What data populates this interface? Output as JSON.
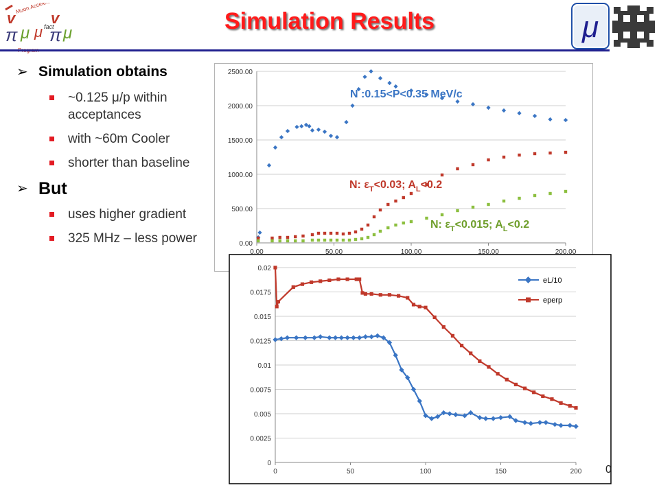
{
  "slide": {
    "title": "Simulation Results",
    "page_number": "0",
    "logo_left": {
      "text": [
        "Muon Accelerator",
        "Program",
        "fact"
      ]
    },
    "logo_right": {
      "symbol": "μ"
    },
    "accent_color": "#e31b23",
    "title_color": "#ff1a1a"
  },
  "bullets": {
    "b1": "Simulation obtains",
    "b1_items": [
      "~0.125 μ/p within acceptances",
      "with ~60m Cooler",
      "shorter than baseline"
    ],
    "b2": "But",
    "b2_items": [
      "uses higher gradient",
      "325 MHz – less power"
    ]
  },
  "chart_data": [
    {
      "type": "scatter",
      "x_ticks": [
        "0.00",
        "50.00",
        "100.00",
        "150.00",
        "200.00"
      ],
      "y_ticks": [
        "0.00",
        "500.00",
        "1000.00",
        "1500.00",
        "2000.00",
        "2500.00"
      ],
      "xlim": [
        0,
        200
      ],
      "ylim": [
        0,
        2500
      ],
      "grid": "horizontal",
      "series": [
        {
          "name": "N :0.15<P<0.35 MeV/c",
          "color": "#3a75c4",
          "x": [
            1,
            2,
            8,
            12,
            16,
            20,
            26,
            29,
            32,
            34,
            36,
            40,
            44,
            48,
            52,
            58,
            62,
            66,
            70,
            74,
            80,
            86,
            90,
            100,
            110,
            120,
            130,
            140,
            150,
            160,
            170,
            180,
            190,
            200
          ],
          "y": [
            80,
            150,
            1130,
            1390,
            1540,
            1630,
            1690,
            1700,
            1720,
            1700,
            1640,
            1650,
            1620,
            1560,
            1540,
            1760,
            2000,
            2240,
            2420,
            2500,
            2400,
            2330,
            2280,
            2220,
            2160,
            2110,
            2060,
            2020,
            1970,
            1930,
            1890,
            1850,
            1800,
            1790
          ]
        },
        {
          "name": "N: εT<0.03; AL<0.2",
          "label_parts": [
            "N: ε",
            "T",
            "<0.03; A",
            "L",
            "<0.2"
          ],
          "color": "#c0392b",
          "x": [
            1,
            10,
            15,
            20,
            25,
            30,
            36,
            40,
            44,
            48,
            52,
            56,
            60,
            64,
            68,
            72,
            76,
            80,
            85,
            90,
            95,
            100,
            110,
            120,
            130,
            140,
            150,
            160,
            170,
            180,
            190,
            200
          ],
          "y": [
            70,
            70,
            80,
            80,
            90,
            100,
            120,
            140,
            140,
            140,
            140,
            130,
            140,
            160,
            200,
            260,
            380,
            480,
            560,
            610,
            660,
            720,
            850,
            990,
            1080,
            1140,
            1210,
            1250,
            1280,
            1300,
            1310,
            1320
          ]
        },
        {
          "name": "N: εT<0.015; AL<0.2",
          "label_parts": [
            "N: ε",
            "T",
            "<0.015; A",
            "L",
            "<0.2"
          ],
          "color": "#8cbf3f",
          "x": [
            1,
            10,
            15,
            20,
            25,
            30,
            36,
            40,
            44,
            48,
            52,
            56,
            60,
            64,
            68,
            72,
            76,
            80,
            85,
            90,
            95,
            100,
            110,
            120,
            130,
            140,
            150,
            160,
            170,
            180,
            190,
            200
          ],
          "y": [
            30,
            30,
            30,
            30,
            30,
            30,
            40,
            40,
            40,
            40,
            40,
            40,
            40,
            50,
            60,
            80,
            120,
            170,
            220,
            260,
            290,
            310,
            360,
            410,
            470,
            520,
            560,
            610,
            650,
            690,
            720,
            750
          ]
        }
      ]
    },
    {
      "type": "line",
      "x_ticks": [
        "0",
        "50",
        "100",
        "150",
        "200"
      ],
      "y_ticks": [
        "0",
        "0.0025",
        "0.005",
        "0.0075",
        "0.01",
        "0.0125",
        "0.015",
        "0.0175",
        "0.02"
      ],
      "xlim": [
        0,
        200
      ],
      "ylim": [
        0,
        0.02
      ],
      "grid": "horizontal",
      "legend": "top-right",
      "series": [
        {
          "name": "eL/10",
          "color": "#3a75c4",
          "x": [
            0,
            4,
            8,
            14,
            20,
            26,
            30,
            36,
            40,
            44,
            48,
            52,
            56,
            60,
            64,
            68,
            72,
            76,
            80,
            84,
            88,
            92,
            96,
            100,
            104,
            108,
            112,
            116,
            120,
            126,
            130,
            136,
            140,
            145,
            150,
            156,
            160,
            166,
            170,
            176,
            180,
            186,
            190,
            196,
            200
          ],
          "y": [
            0.0126,
            0.0127,
            0.0128,
            0.0128,
            0.0128,
            0.0128,
            0.0129,
            0.0128,
            0.0128,
            0.0128,
            0.0128,
            0.0128,
            0.0128,
            0.0129,
            0.0129,
            0.013,
            0.0128,
            0.0123,
            0.011,
            0.0095,
            0.0087,
            0.0075,
            0.0063,
            0.0048,
            0.0045,
            0.0047,
            0.0051,
            0.005,
            0.0049,
            0.0048,
            0.0051,
            0.0046,
            0.0045,
            0.0045,
            0.0046,
            0.0047,
            0.0043,
            0.0041,
            0.004,
            0.0041,
            0.0041,
            0.0039,
            0.0038,
            0.0038,
            0.0037
          ]
        },
        {
          "name": "eperp",
          "color": "#c0392b",
          "x": [
            0,
            1,
            2,
            12,
            18,
            24,
            30,
            36,
            42,
            48,
            54,
            56,
            58,
            60,
            64,
            70,
            76,
            82,
            88,
            92,
            96,
            100,
            106,
            112,
            118,
            124,
            130,
            136,
            142,
            148,
            154,
            160,
            166,
            172,
            178,
            184,
            190,
            196,
            200
          ],
          "y": [
            0.02,
            0.016,
            0.0165,
            0.018,
            0.0183,
            0.0185,
            0.0186,
            0.0187,
            0.0188,
            0.0188,
            0.0188,
            0.0188,
            0.0174,
            0.0173,
            0.0173,
            0.0172,
            0.0172,
            0.0171,
            0.0169,
            0.0162,
            0.016,
            0.0159,
            0.0149,
            0.0139,
            0.013,
            0.012,
            0.0112,
            0.0104,
            0.0098,
            0.0091,
            0.0085,
            0.008,
            0.0076,
            0.0072,
            0.0068,
            0.0065,
            0.0061,
            0.0058,
            0.0056
          ]
        }
      ]
    }
  ]
}
